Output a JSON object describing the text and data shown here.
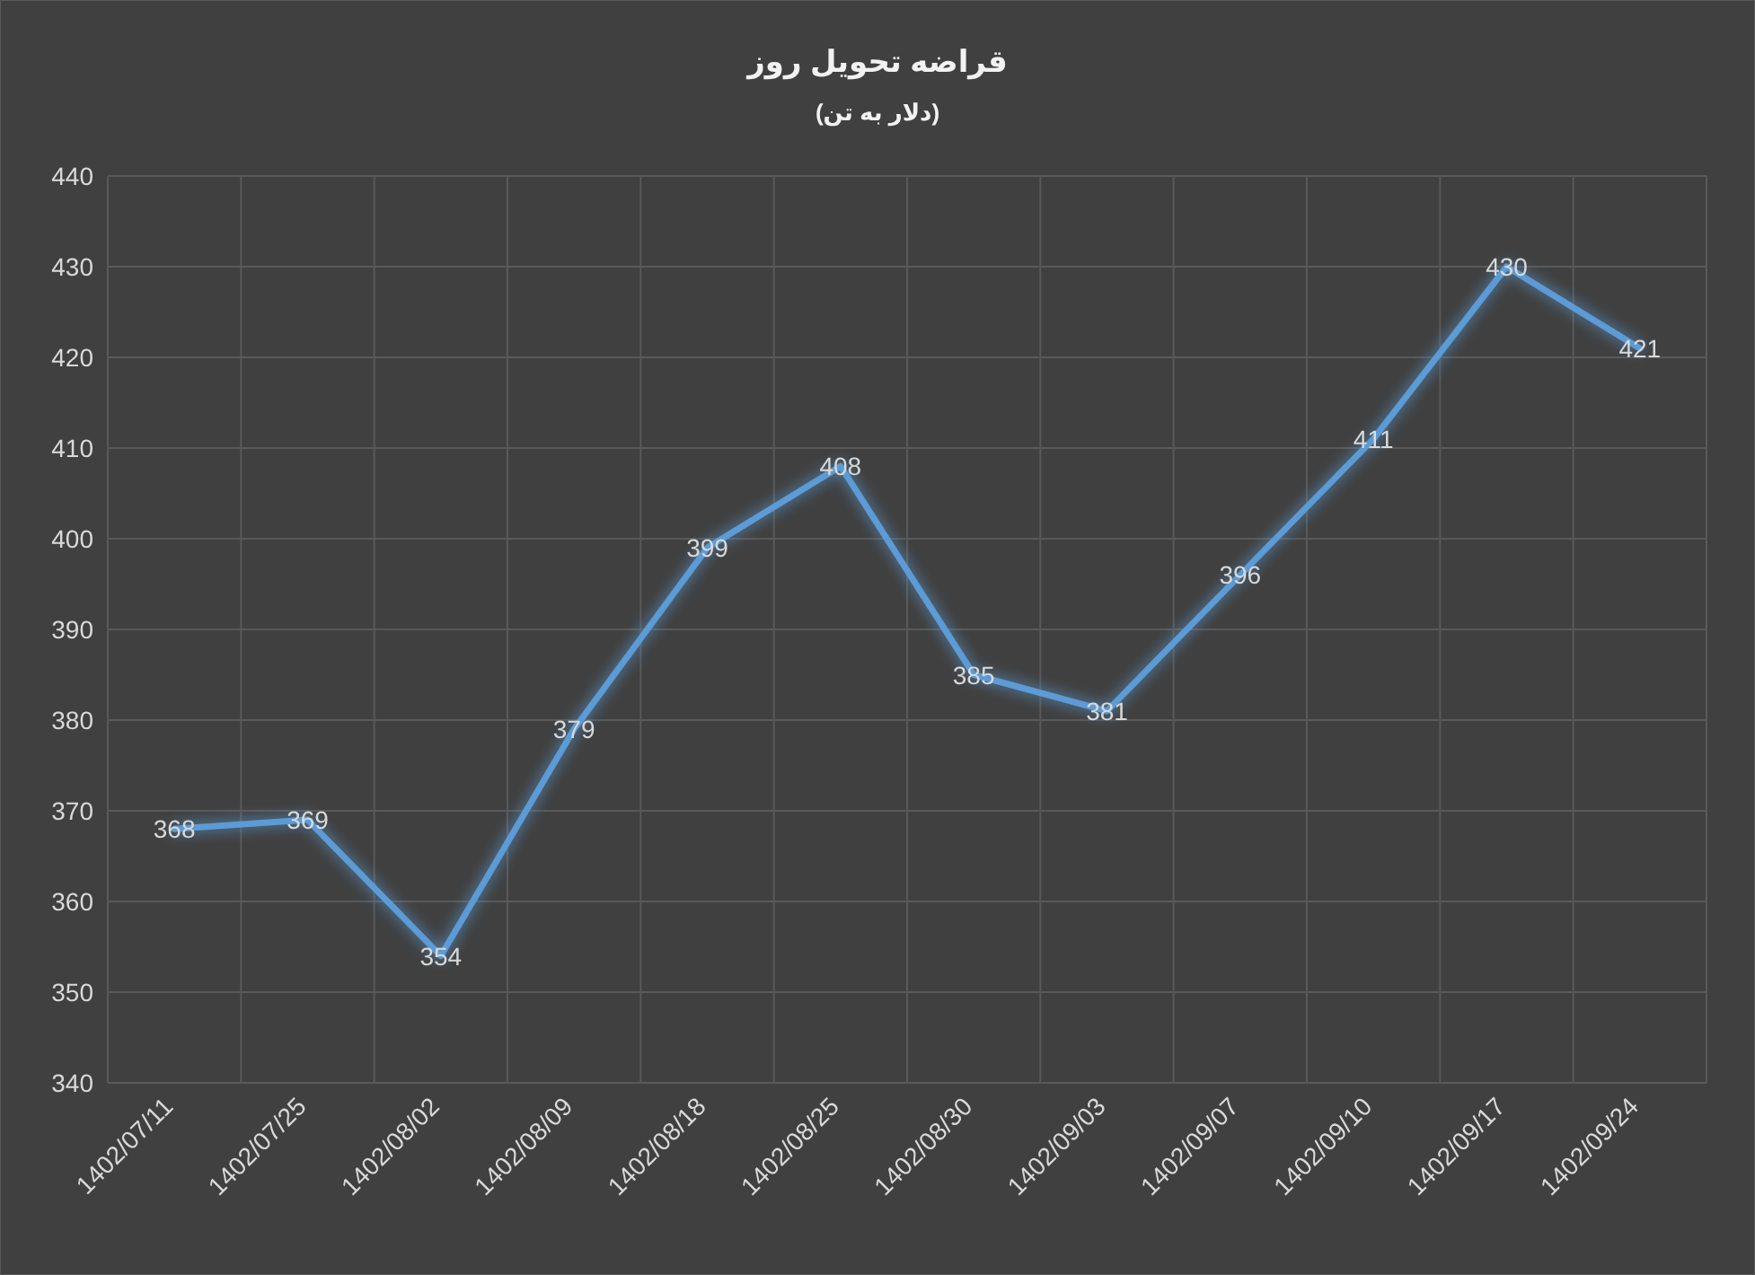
{
  "chart_data": {
    "type": "line",
    "title": "قراضه تحویل روز",
    "subtitle": "(دلار به تن)",
    "categories": [
      "1402/07/11",
      "1402/07/25",
      "1402/08/02",
      "1402/08/09",
      "1402/08/18",
      "1402/08/25",
      "1402/08/30",
      "1402/09/03",
      "1402/09/07",
      "1402/09/10",
      "1402/09/17",
      "1402/09/24"
    ],
    "series": [
      {
        "color": "#5b9bd5",
        "values": [
          368,
          369,
          354,
          379,
          399,
          408,
          385,
          381,
          396,
          411,
          430,
          421
        ]
      }
    ],
    "ylim": [
      340,
      440
    ],
    "yticks": [
      340,
      350,
      360,
      370,
      380,
      390,
      400,
      410,
      420,
      430,
      440
    ],
    "grid": true,
    "data_labels": true,
    "marker": "none",
    "line_style": "solid"
  }
}
